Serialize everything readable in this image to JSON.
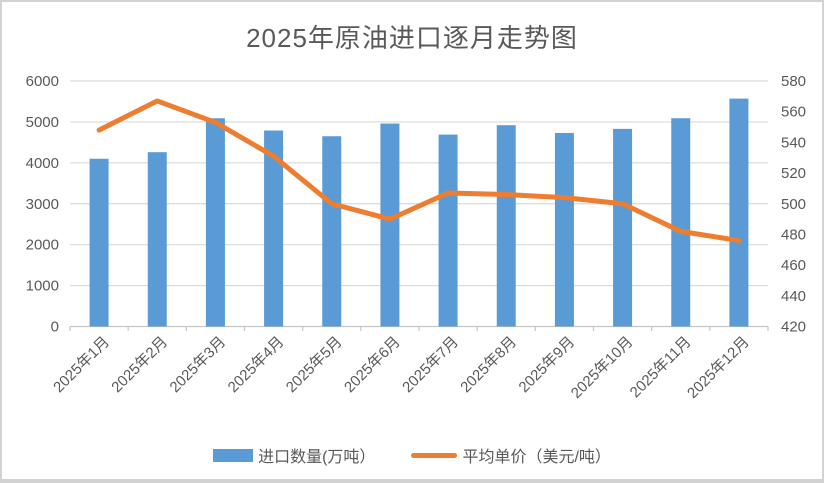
{
  "chart_data": {
    "type": "bar+line",
    "title": "2025年原油进口逐月走势图",
    "categories": [
      "2025年1月",
      "2025年2月",
      "2025年3月",
      "2025年4月",
      "2025年5月",
      "2025年6月",
      "2025年7月",
      "2025年8月",
      "2025年9月",
      "2025年10月",
      "2025年11月",
      "2025年12月"
    ],
    "series": [
      {
        "name": "进口数量(万吨）",
        "chart_type": "bar",
        "axis": "left",
        "color": "#5B9BD5",
        "values": [
          4100,
          4260,
          5090,
          4790,
          4650,
          4960,
          4690,
          4920,
          4730,
          4830,
          5090,
          5570
        ]
      },
      {
        "name": "平均单价（美元/吨）",
        "chart_type": "line",
        "axis": "right",
        "color": "#ED7D31",
        "values": [
          548,
          567,
          553,
          531,
          500,
          490,
          507,
          506,
          504,
          500,
          482,
          476
        ]
      }
    ],
    "left_axis": {
      "min": 0,
      "max": 6000,
      "step": 1000,
      "ticks": [
        "0",
        "1000",
        "2000",
        "3000",
        "4000",
        "5000",
        "6000"
      ]
    },
    "right_axis": {
      "min": 420,
      "max": 580,
      "step": 20,
      "ticks": [
        "420",
        "440",
        "460",
        "480",
        "500",
        "520",
        "540",
        "560",
        "580"
      ]
    },
    "grid": true,
    "legend_position": "bottom",
    "colors": {
      "grid": "#D9D9D9",
      "axis_line": "#C6C6C6",
      "text": "#595959",
      "background": "#FFFFFF",
      "border": "#D2D2D2"
    }
  }
}
